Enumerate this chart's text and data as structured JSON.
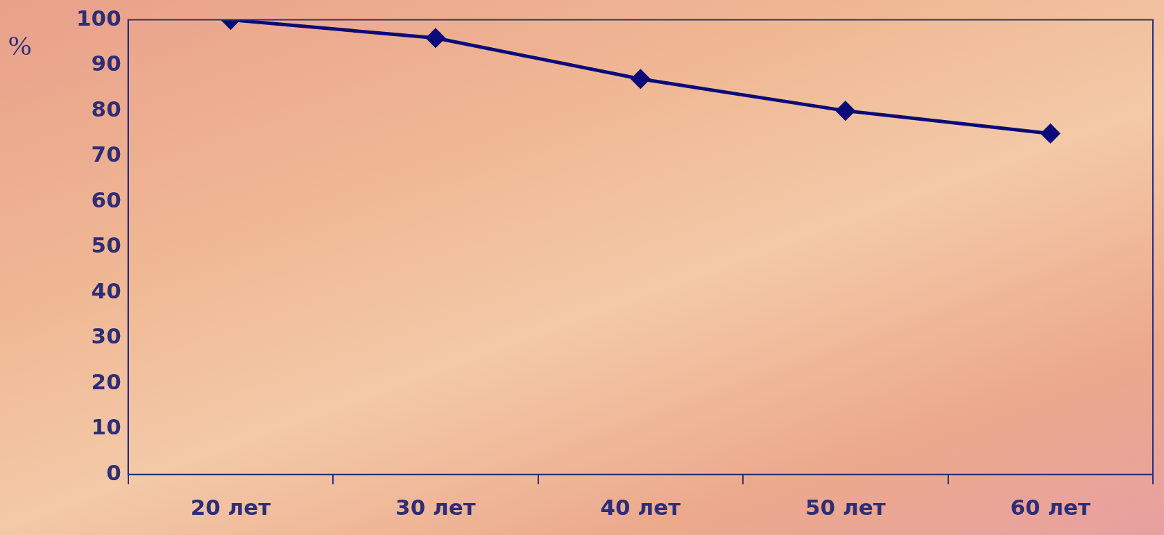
{
  "chart_data": {
    "type": "line",
    "ylabel": "%",
    "categories": [
      "20 лет",
      "30 лет",
      "40 лет",
      "50 лет",
      "60 лет"
    ],
    "series": [
      {
        "color": "#0a0a78",
        "values": [
          100,
          96,
          87,
          80,
          75
        ]
      }
    ],
    "ylim": [
      0,
      100
    ],
    "yticks": [
      0,
      10,
      20,
      30,
      40,
      50,
      60,
      70,
      80,
      90,
      100
    ],
    "grid": false,
    "legend": false,
    "marker": "diamond",
    "line_style": "solid"
  }
}
